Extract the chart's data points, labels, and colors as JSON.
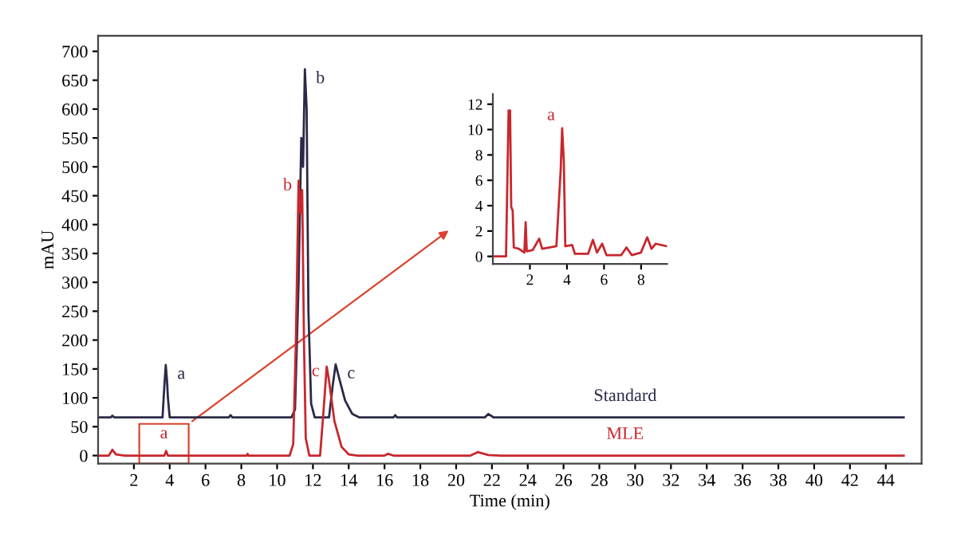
{
  "chart_data": [
    {
      "type": "line",
      "xlabel": "Time (min)",
      "ylabel": "mAU",
      "xlim": [
        0,
        46
      ],
      "ylim": [
        -14,
        727
      ],
      "xticks": [
        2,
        4,
        6,
        8,
        10,
        12,
        14,
        16,
        18,
        20,
        22,
        24,
        26,
        28,
        30,
        32,
        34,
        36,
        38,
        40,
        42,
        44
      ],
      "yticks": [
        0,
        50,
        100,
        150,
        200,
        250,
        300,
        350,
        400,
        450,
        500,
        550,
        600,
        650,
        700
      ],
      "grid": false,
      "legend": false,
      "series": [
        {
          "name": "Standard",
          "color": "#2a2a48",
          "x": [
            0,
            0.7,
            0.8,
            0.9,
            3.6,
            3.7,
            3.78,
            3.85,
            3.9,
            4.0,
            7.3,
            7.4,
            7.5,
            10.8,
            11.0,
            11.2,
            11.35,
            11.45,
            11.55,
            11.65,
            11.75,
            11.9,
            12.1,
            12.9,
            13.1,
            13.27,
            13.5,
            13.8,
            14.2,
            14.6,
            16.5,
            16.6,
            16.7,
            21.6,
            21.8,
            22.1,
            45
          ],
          "values": [
            66,
            66,
            69,
            66,
            66,
            120,
            157,
            130,
            100,
            66,
            66,
            70,
            66,
            66,
            80,
            300,
            550,
            500,
            669,
            600,
            250,
            90,
            66,
            66,
            120,
            158,
            130,
            95,
            72,
            66,
            66,
            70,
            66,
            66,
            72,
            66,
            66
          ]
        },
        {
          "name": "MLE",
          "color": "#c8272d",
          "x": [
            0,
            0.6,
            0.8,
            1.0,
            1.5,
            3.7,
            3.8,
            3.9,
            8.3,
            8.35,
            8.4,
            10.7,
            10.9,
            11.05,
            11.2,
            11.3,
            11.4,
            11.5,
            11.6,
            11.8,
            12.4,
            12.6,
            12.77,
            12.9,
            13.2,
            13.6,
            14.0,
            14.5,
            16.0,
            16.2,
            16.5,
            20.8,
            21.2,
            21.8,
            22.5,
            45
          ],
          "values": [
            0,
            0,
            10,
            2,
            0,
            0,
            8,
            0,
            0,
            3,
            0,
            0,
            20,
            200,
            476,
            420,
            460,
            200,
            30,
            0,
            0,
            80,
            154,
            130,
            60,
            15,
            2,
            0,
            0,
            3,
            0,
            0,
            6,
            1,
            0,
            0
          ]
        }
      ],
      "annotations": [
        {
          "text": "a",
          "x": 3.78,
          "y": 157
        },
        {
          "text": "b",
          "x": 11.55,
          "y": 669
        },
        {
          "text": "c",
          "x": 13.27,
          "y": 158
        },
        {
          "text": "a",
          "x": 3.8,
          "y": 8
        },
        {
          "text": "b",
          "x": 11.2,
          "y": 476
        },
        {
          "text": "c",
          "x": 12.77,
          "y": 154
        }
      ]
    },
    {
      "type": "line",
      "xlim": [
        0,
        9.4
      ],
      "ylim": [
        -0.6,
        12.8
      ],
      "xticks": [
        2,
        4,
        6,
        8
      ],
      "yticks": [
        0,
        2,
        4,
        6,
        8,
        10,
        12
      ],
      "grid": false,
      "legend": false,
      "series": [
        {
          "color": "#c8272d",
          "x": [
            0.1,
            0.71,
            0.85,
            0.93,
            0.99,
            1.07,
            1.13,
            1.4,
            1.7,
            1.77,
            1.83,
            2.15,
            2.5,
            2.66,
            3.43,
            3.66,
            3.74,
            3.83,
            3.91,
            4.28,
            4.43,
            5.14,
            5.4,
            5.62,
            5.9,
            6.13,
            6.93,
            7.21,
            7.5,
            7.99,
            8.33,
            8.56,
            8.79,
            9.4
          ],
          "values": [
            0,
            0,
            11.5,
            11.5,
            3.9,
            3.6,
            0.7,
            0.6,
            0.3,
            2.7,
            0.4,
            0.5,
            1.4,
            0.6,
            0.8,
            6.8,
            10.1,
            7.5,
            0.8,
            0.9,
            0.2,
            0.2,
            1.3,
            0.3,
            1.0,
            0.1,
            0.1,
            0.7,
            0.1,
            0.3,
            1.5,
            0.6,
            1.0,
            0.8
          ]
        }
      ],
      "annotations": [
        {
          "text": "a",
          "x": 3.74,
          "y": 10.1
        }
      ]
    }
  ]
}
